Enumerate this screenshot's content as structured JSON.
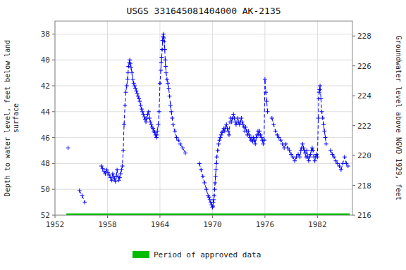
{
  "chart_data": {
    "type": "line",
    "title": "USGS 331645081404000 AK-2135",
    "y_label": "Depth to water level, feet below land\nsurface",
    "y2_label": "Groundwater level above NGVD 1929, feet",
    "xlim": [
      1952,
      1986
    ],
    "ylim": [
      52,
      37
    ],
    "y2lim": [
      216,
      229
    ],
    "xticks": [
      1952,
      1958,
      1964,
      1970,
      1976,
      1982
    ],
    "yticks": [
      38,
      40,
      42,
      44,
      46,
      48,
      50,
      52
    ],
    "y2ticks": [
      216,
      218,
      220,
      222,
      224,
      226,
      228
    ],
    "grid": true,
    "legend": "bottom",
    "series": [
      {
        "color": "#0000FF",
        "marker": "plus",
        "line_style": "dashed",
        "x": [
          1953.5
        ],
        "values": [
          46.8
        ]
      },
      {
        "color": "#0000FF",
        "marker": "plus",
        "line_style": "dashed",
        "x": [
          1954.8,
          1955.1,
          1955.4
        ],
        "values": [
          50.1,
          50.5,
          51.0
        ]
      },
      {
        "color": "#0000FF",
        "marker": "plus",
        "line_style": "dashed",
        "x": [
          1957.3,
          1957.45,
          1957.6,
          1957.75,
          1957.9,
          1958.05,
          1958.2,
          1958.35,
          1958.5,
          1958.6,
          1958.7,
          1958.8,
          1958.9,
          1959.0,
          1959.1,
          1959.2,
          1959.3,
          1959.4,
          1959.5,
          1959.6,
          1959.7,
          1959.8,
          1959.9,
          1960.0,
          1960.1,
          1960.2,
          1960.3,
          1960.35,
          1960.4,
          1960.5,
          1960.55,
          1960.6,
          1960.7,
          1960.8,
          1960.9,
          1961.0,
          1961.1,
          1961.2,
          1961.3,
          1961.4,
          1961.5,
          1961.6,
          1961.7,
          1961.8,
          1961.9,
          1962.0,
          1962.1,
          1962.2,
          1962.3,
          1962.4,
          1962.5,
          1962.6,
          1962.7,
          1962.8,
          1962.9,
          1963.0,
          1963.1,
          1963.2,
          1963.3,
          1963.4,
          1963.5,
          1963.6,
          1963.65,
          1963.7,
          1963.8,
          1963.9,
          1964.0,
          1964.1,
          1964.15,
          1964.2,
          1964.25,
          1964.3,
          1964.35,
          1964.4,
          1964.45,
          1964.5,
          1964.55,
          1964.6,
          1964.65,
          1964.7,
          1964.8,
          1964.9,
          1965.0,
          1965.1,
          1965.2,
          1965.3,
          1965.4,
          1965.5,
          1965.7,
          1965.9,
          1966.1,
          1966.3,
          1966.6,
          1966.9
        ],
        "values": [
          48.2,
          48.4,
          48.6,
          48.8,
          48.5,
          48.7,
          48.9,
          49.1,
          49.3,
          48.8,
          49.0,
          49.2,
          49.4,
          49.0,
          48.5,
          49.0,
          49.3,
          49.1,
          48.8,
          48.5,
          48.2,
          47.0,
          45.0,
          43.5,
          42.5,
          42.0,
          41.5,
          41.0,
          40.5,
          40.2,
          40.0,
          40.3,
          40.6,
          41.0,
          41.5,
          41.8,
          42.0,
          42.2,
          42.4,
          42.6,
          42.8,
          43.0,
          43.2,
          43.5,
          43.8,
          44.0,
          44.2,
          44.4,
          44.6,
          44.8,
          44.5,
          44.2,
          44.0,
          44.5,
          44.8,
          45.0,
          45.2,
          45.3,
          45.5,
          45.6,
          45.8,
          46.0,
          45.8,
          45.5,
          45.0,
          44.0,
          41.8,
          40.8,
          40.2,
          39.8,
          39.2,
          38.5,
          38.2,
          38.0,
          38.3,
          38.6,
          39.2,
          40.0,
          40.5,
          41.0,
          41.5,
          41.8,
          42.2,
          42.8,
          43.5,
          44.0,
          44.5,
          45.0,
          45.5,
          46.0,
          46.2,
          46.5,
          46.8,
          47.2
        ]
      },
      {
        "color": "#0000FF",
        "marker": "plus",
        "line_style": "dashed",
        "x": [
          1968.5,
          1968.7,
          1968.9,
          1969.1,
          1969.3,
          1969.5,
          1969.6,
          1969.7,
          1969.8,
          1969.9,
          1970.0,
          1970.05,
          1970.1,
          1970.15,
          1970.2,
          1970.25,
          1970.3,
          1970.35,
          1970.4,
          1970.45,
          1970.5,
          1970.6,
          1970.7,
          1970.8,
          1970.9,
          1971.0,
          1971.1
        ],
        "values": [
          48.0,
          48.5,
          49.0,
          49.5,
          50.0,
          50.5,
          50.6,
          50.8,
          51.0,
          51.2,
          51.4,
          51.3,
          51.0,
          50.8,
          50.5,
          50.0,
          49.5,
          49.0,
          48.5,
          48.0,
          47.5,
          47.0,
          46.5,
          46.2,
          46.0,
          45.8,
          45.6
        ]
      },
      {
        "color": "#0000FF",
        "marker": "plus",
        "line_style": "dashed",
        "x": [
          1971.2,
          1971.3,
          1971.4,
          1971.5,
          1971.6,
          1971.7,
          1971.8,
          1971.9,
          1972.0,
          1972.1,
          1972.2,
          1972.3,
          1972.4,
          1972.5,
          1972.6,
          1972.7,
          1972.8,
          1972.9,
          1973.0,
          1973.1,
          1973.2,
          1973.3,
          1973.4,
          1973.5,
          1973.6,
          1973.7,
          1973.8,
          1973.9,
          1974.0,
          1974.1,
          1974.2,
          1974.3,
          1974.4,
          1974.5,
          1974.6,
          1974.7,
          1974.8,
          1974.9,
          1975.0,
          1975.1,
          1975.2,
          1975.3,
          1975.4,
          1975.5,
          1975.6,
          1975.7,
          1975.8,
          1975.9
        ],
        "values": [
          45.5,
          45.3,
          45.5,
          45.2,
          45.0,
          45.3,
          45.5,
          45.8,
          44.8,
          44.5,
          44.8,
          44.5,
          44.2,
          44.5,
          44.8,
          45.0,
          44.8,
          44.5,
          44.8,
          45.0,
          44.8,
          44.5,
          44.8,
          45.0,
          45.2,
          45.5,
          45.2,
          45.5,
          45.8,
          45.5,
          45.8,
          46.0,
          46.2,
          46.0,
          46.3,
          46.0,
          46.2,
          46.5,
          46.0,
          45.8,
          45.5,
          45.8,
          45.5,
          45.8,
          46.0,
          46.2,
          46.5,
          46.2
        ]
      },
      {
        "color": "#0000FF",
        "marker": "plus",
        "line_style": "dashed",
        "x": [
          1975.9,
          1976.0,
          1976.1,
          1976.2,
          1976.3
        ],
        "values": [
          46.2,
          41.5,
          42.5,
          43.2,
          44.0
        ]
      },
      {
        "color": "#0000FF",
        "marker": "plus",
        "line_style": "dashed",
        "x": [
          1976.8,
          1977.0,
          1977.2,
          1977.4,
          1977.6,
          1977.8,
          1978.0,
          1978.2,
          1978.4,
          1978.6,
          1978.8,
          1979.0,
          1979.2,
          1979.4,
          1979.6,
          1979.8,
          1980.0,
          1980.1,
          1980.2,
          1980.3,
          1980.4,
          1980.5,
          1980.6,
          1980.7,
          1980.8,
          1980.9,
          1981.0,
          1981.1,
          1981.2,
          1981.3,
          1981.4,
          1981.5,
          1981.6,
          1981.7,
          1981.8,
          1981.9
        ],
        "values": [
          44.5,
          45.0,
          45.5,
          45.8,
          46.0,
          46.2,
          46.5,
          46.8,
          46.5,
          46.8,
          47.0,
          47.3,
          47.5,
          47.8,
          47.5,
          47.3,
          47.5,
          47.0,
          46.8,
          46.5,
          46.8,
          47.0,
          47.2,
          47.5,
          47.0,
          47.5,
          47.8,
          47.5,
          47.3,
          47.0,
          46.8,
          47.0,
          47.5,
          47.8,
          47.5,
          47.3
        ]
      },
      {
        "color": "#0000FF",
        "marker": "plus",
        "line_style": "dashed",
        "x": [
          1982.0,
          1982.1,
          1982.15,
          1982.2,
          1982.25,
          1982.3,
          1982.4,
          1982.5,
          1982.6,
          1982.7,
          1982.8,
          1982.9,
          1983.0
        ],
        "values": [
          47.5,
          44.5,
          43.0,
          42.5,
          42.3,
          42.0,
          43.0,
          44.0,
          44.5,
          45.0,
          45.5,
          46.0,
          46.5
        ]
      },
      {
        "color": "#0000FF",
        "marker": "plus",
        "line_style": "dashed",
        "x": [
          1983.5,
          1983.7,
          1983.9,
          1984.1,
          1984.3,
          1984.5,
          1984.7,
          1984.9,
          1985.1,
          1985.3,
          1985.5
        ],
        "values": [
          47.0,
          47.3,
          47.5,
          47.8,
          48.0,
          48.2,
          48.5,
          48.0,
          47.5,
          48.0,
          48.2
        ]
      },
      {
        "name": "Period of approved data",
        "color": "#00BB00",
        "line_style": "solid",
        "x": [
          1953.3,
          1985.7
        ],
        "values": [
          52,
          52
        ]
      }
    ]
  }
}
